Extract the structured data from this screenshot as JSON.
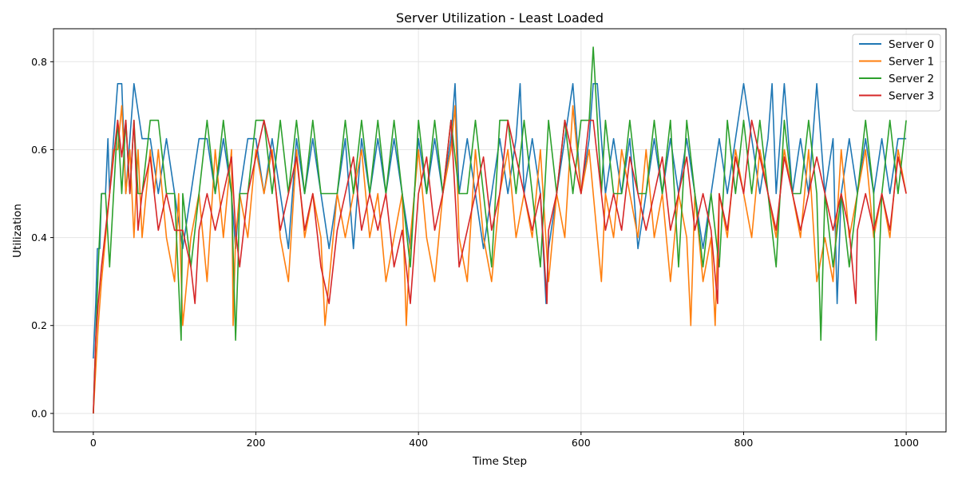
{
  "chart_data": {
    "type": "line",
    "title": "Server Utilization - Least Loaded",
    "xlabel": "Time Step",
    "ylabel": "Utilization",
    "xlim": [
      -49,
      1049
    ],
    "ylim": [
      -0.042,
      0.875
    ],
    "xticks": [
      0,
      200,
      400,
      600,
      800,
      1000
    ],
    "yticks": [
      0.0,
      0.2,
      0.4,
      0.6,
      0.8
    ],
    "xtick_labels": [
      "0",
      "200",
      "400",
      "600",
      "800",
      "1000"
    ],
    "ytick_labels": [
      "0.0",
      "0.2",
      "0.4",
      "0.6",
      "0.8"
    ],
    "grid": true,
    "legend_position": "top-right",
    "series": [
      {
        "name": "Server 0",
        "color": "#1f77b4",
        "x": [
          0,
          3,
          5,
          8,
          10,
          15,
          18,
          20,
          25,
          30,
          35,
          40,
          45,
          50,
          60,
          70,
          80,
          90,
          100,
          110,
          120,
          130,
          140,
          150,
          160,
          170,
          175,
          180,
          190,
          200,
          210,
          220,
          230,
          240,
          250,
          260,
          270,
          280,
          290,
          300,
          310,
          320,
          330,
          340,
          350,
          360,
          370,
          380,
          390,
          400,
          410,
          420,
          430,
          440,
          445,
          450,
          460,
          470,
          480,
          490,
          500,
          510,
          520,
          525,
          530,
          540,
          550,
          557,
          560,
          570,
          580,
          590,
          600,
          610,
          615,
          620,
          625,
          630,
          640,
          650,
          660,
          670,
          680,
          690,
          700,
          710,
          720,
          730,
          740,
          750,
          760,
          770,
          780,
          790,
          800,
          810,
          820,
          830,
          835,
          840,
          850,
          860,
          870,
          880,
          890,
          900,
          910,
          915,
          920,
          930,
          940,
          950,
          960,
          970,
          980,
          990,
          1000
        ],
        "values": [
          0.125,
          0.25,
          0.375,
          0.375,
          0.5,
          0.5,
          0.625,
          0.5,
          0.625,
          0.75,
          0.75,
          0.5,
          0.625,
          0.75,
          0.625,
          0.625,
          0.5,
          0.625,
          0.5,
          0.375,
          0.5,
          0.625,
          0.625,
          0.5,
          0.625,
          0.5,
          0.375,
          0.5,
          0.625,
          0.625,
          0.5,
          0.625,
          0.5,
          0.375,
          0.625,
          0.5,
          0.625,
          0.5,
          0.375,
          0.5,
          0.625,
          0.375,
          0.625,
          0.5,
          0.625,
          0.5,
          0.625,
          0.5,
          0.375,
          0.625,
          0.5,
          0.625,
          0.5,
          0.625,
          0.75,
          0.5,
          0.625,
          0.5,
          0.375,
          0.5,
          0.625,
          0.5,
          0.625,
          0.75,
          0.5,
          0.625,
          0.5,
          0.25,
          0.375,
          0.5,
          0.625,
          0.75,
          0.5,
          0.625,
          0.75,
          0.75,
          0.625,
          0.5,
          0.625,
          0.5,
          0.625,
          0.375,
          0.5,
          0.625,
          0.5,
          0.625,
          0.5,
          0.625,
          0.5,
          0.375,
          0.5,
          0.625,
          0.5,
          0.625,
          0.75,
          0.625,
          0.5,
          0.625,
          0.75,
          0.5,
          0.75,
          0.5,
          0.625,
          0.5,
          0.75,
          0.5,
          0.625,
          0.25,
          0.5,
          0.625,
          0.5,
          0.625,
          0.5,
          0.625,
          0.5,
          0.625,
          0.625
        ]
      },
      {
        "name": "Server 1",
        "color": "#ff7f0e",
        "x": [
          0,
          3,
          6,
          10,
          15,
          20,
          25,
          30,
          35,
          40,
          45,
          50,
          55,
          60,
          65,
          70,
          75,
          80,
          90,
          100,
          105,
          110,
          120,
          130,
          140,
          150,
          160,
          170,
          172,
          175,
          180,
          190,
          200,
          210,
          220,
          230,
          240,
          250,
          260,
          270,
          280,
          285,
          290,
          300,
          310,
          320,
          330,
          340,
          350,
          360,
          370,
          380,
          385,
          390,
          400,
          410,
          420,
          430,
          440,
          445,
          450,
          460,
          470,
          480,
          490,
          500,
          510,
          520,
          530,
          540,
          550,
          560,
          570,
          580,
          590,
          600,
          610,
          620,
          625,
          630,
          640,
          650,
          660,
          670,
          680,
          690,
          700,
          710,
          720,
          730,
          735,
          740,
          750,
          760,
          765,
          770,
          780,
          790,
          800,
          810,
          820,
          830,
          840,
          850,
          860,
          870,
          880,
          890,
          900,
          910,
          920,
          930,
          940,
          950,
          960,
          970,
          980,
          990,
          1000
        ],
        "values": [
          0.0,
          0.1,
          0.2,
          0.3,
          0.4,
          0.5,
          0.6,
          0.6,
          0.7,
          0.5,
          0.6,
          0.4,
          0.6,
          0.4,
          0.5,
          0.6,
          0.5,
          0.6,
          0.4,
          0.3,
          0.5,
          0.2,
          0.4,
          0.5,
          0.3,
          0.6,
          0.4,
          0.6,
          0.2,
          0.4,
          0.5,
          0.4,
          0.6,
          0.5,
          0.6,
          0.4,
          0.3,
          0.6,
          0.4,
          0.5,
          0.4,
          0.2,
          0.3,
          0.5,
          0.4,
          0.5,
          0.6,
          0.4,
          0.5,
          0.3,
          0.4,
          0.5,
          0.2,
          0.4,
          0.6,
          0.4,
          0.3,
          0.5,
          0.6,
          0.7,
          0.4,
          0.3,
          0.6,
          0.4,
          0.3,
          0.5,
          0.6,
          0.4,
          0.5,
          0.4,
          0.6,
          0.3,
          0.5,
          0.4,
          0.7,
          0.5,
          0.6,
          0.4,
          0.3,
          0.5,
          0.4,
          0.6,
          0.5,
          0.4,
          0.6,
          0.4,
          0.5,
          0.3,
          0.5,
          0.4,
          0.2,
          0.5,
          0.3,
          0.4,
          0.2,
          0.5,
          0.4,
          0.6,
          0.5,
          0.4,
          0.6,
          0.5,
          0.4,
          0.6,
          0.5,
          0.4,
          0.6,
          0.3,
          0.4,
          0.3,
          0.6,
          0.4,
          0.5,
          0.6,
          0.4,
          0.5,
          0.4,
          0.6,
          0.5
        ]
      },
      {
        "name": "Server 2",
        "color": "#2ca02c",
        "x": [
          0,
          3,
          6,
          10,
          15,
          20,
          25,
          30,
          35,
          40,
          45,
          50,
          55,
          60,
          70,
          80,
          90,
          100,
          108,
          110,
          120,
          130,
          140,
          150,
          160,
          170,
          175,
          178,
          180,
          190,
          200,
          210,
          220,
          230,
          240,
          250,
          260,
          270,
          280,
          290,
          300,
          310,
          320,
          330,
          340,
          350,
          360,
          370,
          380,
          390,
          400,
          410,
          420,
          430,
          440,
          450,
          460,
          470,
          480,
          490,
          500,
          510,
          520,
          530,
          540,
          550,
          560,
          570,
          580,
          590,
          600,
          610,
          615,
          620,
          625,
          630,
          640,
          650,
          660,
          670,
          680,
          690,
          700,
          710,
          720,
          730,
          740,
          750,
          760,
          770,
          780,
          790,
          800,
          810,
          820,
          830,
          840,
          850,
          860,
          870,
          880,
          890,
          895,
          900,
          910,
          920,
          930,
          940,
          950,
          960,
          963,
          970,
          980,
          990,
          1000
        ],
        "values": [
          0.0,
          0.1667,
          0.3333,
          0.5,
          0.5,
          0.3333,
          0.5,
          0.6667,
          0.5,
          0.6667,
          0.5,
          0.6667,
          0.5,
          0.5,
          0.6667,
          0.6667,
          0.5,
          0.5,
          0.1667,
          0.5,
          0.3333,
          0.5,
          0.6667,
          0.5,
          0.6667,
          0.5,
          0.1667,
          0.3333,
          0.5,
          0.5,
          0.6667,
          0.6667,
          0.5,
          0.6667,
          0.5,
          0.6667,
          0.5,
          0.6667,
          0.5,
          0.5,
          0.5,
          0.6667,
          0.5,
          0.6667,
          0.5,
          0.6667,
          0.5,
          0.6667,
          0.5,
          0.3333,
          0.6667,
          0.5,
          0.6667,
          0.5,
          0.6667,
          0.5,
          0.5,
          0.6667,
          0.5,
          0.3333,
          0.6667,
          0.6667,
          0.5,
          0.6667,
          0.5,
          0.3333,
          0.6667,
          0.5,
          0.6667,
          0.5,
          0.6667,
          0.6667,
          0.8333,
          0.6667,
          0.5,
          0.6667,
          0.5,
          0.5,
          0.6667,
          0.5,
          0.5,
          0.6667,
          0.5,
          0.6667,
          0.3333,
          0.6667,
          0.5,
          0.3333,
          0.5,
          0.3333,
          0.6667,
          0.5,
          0.6667,
          0.5,
          0.6667,
          0.5,
          0.3333,
          0.6667,
          0.5,
          0.5,
          0.6667,
          0.5,
          0.1667,
          0.5,
          0.3333,
          0.5,
          0.3333,
          0.5,
          0.6667,
          0.5,
          0.1667,
          0.5,
          0.6667,
          0.5,
          0.6667
        ]
      },
      {
        "name": "Server 3",
        "color": "#d62728",
        "x": [
          0,
          3,
          6,
          10,
          15,
          20,
          25,
          30,
          35,
          40,
          45,
          50,
          55,
          60,
          70,
          80,
          90,
          100,
          110,
          120,
          125,
          130,
          140,
          150,
          160,
          170,
          175,
          180,
          190,
          200,
          210,
          220,
          230,
          240,
          250,
          260,
          270,
          280,
          290,
          300,
          310,
          320,
          330,
          340,
          350,
          360,
          370,
          380,
          390,
          400,
          410,
          420,
          430,
          440,
          450,
          460,
          470,
          480,
          490,
          500,
          510,
          520,
          530,
          540,
          550,
          558,
          560,
          570,
          580,
          590,
          600,
          610,
          615,
          620,
          630,
          640,
          650,
          660,
          670,
          680,
          690,
          700,
          710,
          720,
          730,
          740,
          750,
          760,
          768,
          770,
          780,
          790,
          800,
          810,
          820,
          830,
          840,
          850,
          860,
          870,
          880,
          890,
          900,
          910,
          920,
          930,
          938,
          940,
          950,
          960,
          970,
          980,
          990,
          1000
        ],
        "values": [
          0.0,
          0.1667,
          0.25,
          0.3333,
          0.4167,
          0.5,
          0.5833,
          0.6667,
          0.5833,
          0.6667,
          0.5,
          0.6667,
          0.4167,
          0.5,
          0.5833,
          0.4167,
          0.5,
          0.4167,
          0.4167,
          0.3333,
          0.25,
          0.4167,
          0.5,
          0.4167,
          0.5,
          0.5833,
          0.4167,
          0.3333,
          0.5,
          0.5833,
          0.6667,
          0.5833,
          0.4167,
          0.5,
          0.5833,
          0.4167,
          0.5,
          0.3333,
          0.25,
          0.4167,
          0.5,
          0.5833,
          0.4167,
          0.5,
          0.4167,
          0.5,
          0.3333,
          0.4167,
          0.25,
          0.5,
          0.5833,
          0.4167,
          0.5,
          0.6667,
          0.3333,
          0.4167,
          0.5,
          0.5833,
          0.4167,
          0.5,
          0.6667,
          0.5833,
          0.5,
          0.4167,
          0.5,
          0.25,
          0.4167,
          0.5,
          0.6667,
          0.5833,
          0.5,
          0.6667,
          0.6667,
          0.5833,
          0.4167,
          0.5,
          0.4167,
          0.5833,
          0.5,
          0.4167,
          0.5,
          0.5833,
          0.4167,
          0.5,
          0.5833,
          0.4167,
          0.5,
          0.4167,
          0.25,
          0.5,
          0.4167,
          0.5833,
          0.5,
          0.6667,
          0.5833,
          0.5,
          0.4167,
          0.5833,
          0.5,
          0.4167,
          0.5,
          0.5833,
          0.5,
          0.4167,
          0.5,
          0.4167,
          0.25,
          0.4167,
          0.5,
          0.4167,
          0.5,
          0.4167,
          0.5833,
          0.5
        ]
      }
    ]
  }
}
